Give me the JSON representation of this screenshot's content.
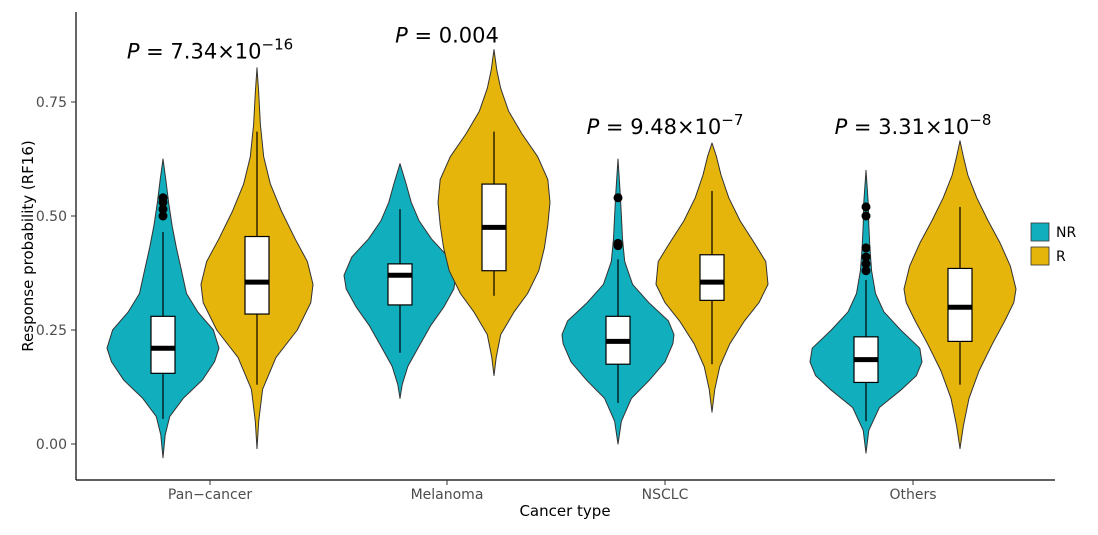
{
  "chart_data": {
    "type": "violin",
    "title": "",
    "xlabel": "Cancer type",
    "ylabel": "Response probability (RF16)",
    "ylim": [
      -0.06,
      0.96
    ],
    "yticks": [
      0.0,
      0.25,
      0.5,
      0.75
    ],
    "ytick_labels": [
      "0.00",
      "0.25",
      "0.50",
      "0.75"
    ],
    "grid": false,
    "legend": {
      "position": "right",
      "entries": [
        {
          "name": "NR",
          "color": "#11AFBD"
        },
        {
          "name": "R",
          "color": "#E5B50B"
        }
      ]
    },
    "categories": [
      "Pan−cancer",
      "Melanoma",
      "NSCLC",
      "Others"
    ],
    "annotations": [
      {
        "category": "Pan−cancer",
        "prefix": "P",
        "mid": " = 7.34×10",
        "sup": "−16",
        "y": 0.845
      },
      {
        "category": "Melanoma",
        "prefix": "P",
        "mid": " = 0.004",
        "sup": "",
        "y": 0.88
      },
      {
        "category": "NSCLC",
        "prefix": "P",
        "mid": " = 9.48×10",
        "sup": "−7",
        "y": 0.68
      },
      {
        "category": "Others",
        "prefix": "P",
        "mid": " = 3.31×10",
        "sup": "−8",
        "y": 0.68
      }
    ],
    "series": [
      {
        "name": "NR",
        "color": "#11AFBD",
        "groups": [
          {
            "category": "Pan−cancer",
            "min": 0.055,
            "q1": 0.155,
            "median": 0.21,
            "q3": 0.28,
            "max": 0.465,
            "outliers": [
              0.5,
              0.515,
              0.53,
              0.54
            ],
            "violin": {
              "ymin": -0.03,
              "ymax": 0.625,
              "points": [
                [
                  -0.03,
                  0.0
                ],
                [
                  0.02,
                  0.04
                ],
                [
                  0.06,
                  0.12
                ],
                [
                  0.1,
                  0.36
                ],
                [
                  0.14,
                  0.7
                ],
                [
                  0.18,
                  0.92
                ],
                [
                  0.21,
                  1.0
                ],
                [
                  0.25,
                  0.9
                ],
                [
                  0.29,
                  0.62
                ],
                [
                  0.33,
                  0.42
                ],
                [
                  0.38,
                  0.33
                ],
                [
                  0.43,
                  0.24
                ],
                [
                  0.48,
                  0.16
                ],
                [
                  0.53,
                  0.1
                ],
                [
                  0.58,
                  0.05
                ],
                [
                  0.625,
                  0.0
                ]
              ]
            }
          },
          {
            "category": "Melanoma",
            "min": 0.2,
            "q1": 0.305,
            "median": 0.37,
            "q3": 0.395,
            "max": 0.515,
            "outliers": [],
            "violin": {
              "ymin": 0.1,
              "ymax": 0.615,
              "points": [
                [
                  0.1,
                  0.0
                ],
                [
                  0.13,
                  0.04
                ],
                [
                  0.17,
                  0.14
                ],
                [
                  0.21,
                  0.32
                ],
                [
                  0.26,
                  0.55
                ],
                [
                  0.3,
                  0.78
                ],
                [
                  0.34,
                  0.96
                ],
                [
                  0.37,
                  1.0
                ],
                [
                  0.41,
                  0.86
                ],
                [
                  0.45,
                  0.56
                ],
                [
                  0.49,
                  0.34
                ],
                [
                  0.53,
                  0.2
                ],
                [
                  0.57,
                  0.11
                ],
                [
                  0.615,
                  0.0
                ]
              ]
            }
          },
          {
            "category": "NSCLC",
            "min": 0.09,
            "q1": 0.175,
            "median": 0.225,
            "q3": 0.28,
            "max": 0.405,
            "outliers": [
              0.435,
              0.44,
              0.54
            ],
            "violin": {
              "ymin": 0.0,
              "ymax": 0.625,
              "points": [
                [
                  0.0,
                  0.0
                ],
                [
                  0.05,
                  0.06
                ],
                [
                  0.1,
                  0.24
                ],
                [
                  0.14,
                  0.56
                ],
                [
                  0.18,
                  0.84
                ],
                [
                  0.22,
                  0.98
                ],
                [
                  0.24,
                  1.0
                ],
                [
                  0.27,
                  0.9
                ],
                [
                  0.31,
                  0.55
                ],
                [
                  0.35,
                  0.26
                ],
                [
                  0.4,
                  0.12
                ],
                [
                  0.45,
                  0.08
                ],
                [
                  0.5,
                  0.06
                ],
                [
                  0.55,
                  0.04
                ],
                [
                  0.625,
                  0.0
                ]
              ]
            }
          },
          {
            "category": "Others",
            "min": 0.05,
            "q1": 0.135,
            "median": 0.185,
            "q3": 0.235,
            "max": 0.36,
            "outliers": [
              0.38,
              0.395,
              0.41,
              0.43,
              0.5,
              0.52
            ],
            "violin": {
              "ymin": -0.02,
              "ymax": 0.6,
              "points": [
                [
                  -0.02,
                  0.0
                ],
                [
                  0.03,
                  0.05
                ],
                [
                  0.08,
                  0.24
                ],
                [
                  0.12,
                  0.64
                ],
                [
                  0.15,
                  0.9
                ],
                [
                  0.18,
                  1.0
                ],
                [
                  0.21,
                  0.96
                ],
                [
                  0.25,
                  0.62
                ],
                [
                  0.29,
                  0.32
                ],
                [
                  0.33,
                  0.17
                ],
                [
                  0.38,
                  0.1
                ],
                [
                  0.43,
                  0.07
                ],
                [
                  0.48,
                  0.05
                ],
                [
                  0.53,
                  0.04
                ],
                [
                  0.6,
                  0.0
                ]
              ]
            }
          }
        ]
      },
      {
        "name": "R",
        "color": "#E5B50B",
        "groups": [
          {
            "category": "Pan−cancer",
            "min": 0.13,
            "q1": 0.285,
            "median": 0.355,
            "q3": 0.455,
            "max": 0.685,
            "outliers": [],
            "violin": {
              "ymin": -0.01,
              "ymax": 0.825,
              "points": [
                [
                  -0.01,
                  0.0
                ],
                [
                  0.05,
                  0.03
                ],
                [
                  0.12,
                  0.1
                ],
                [
                  0.19,
                  0.34
                ],
                [
                  0.25,
                  0.72
                ],
                [
                  0.31,
                  0.96
                ],
                [
                  0.35,
                  1.0
                ],
                [
                  0.4,
                  0.9
                ],
                [
                  0.45,
                  0.68
                ],
                [
                  0.51,
                  0.44
                ],
                [
                  0.57,
                  0.24
                ],
                [
                  0.63,
                  0.12
                ],
                [
                  0.7,
                  0.06
                ],
                [
                  0.77,
                  0.03
                ],
                [
                  0.825,
                  0.0
                ]
              ]
            }
          },
          {
            "category": "Melanoma",
            "min": 0.325,
            "q1": 0.38,
            "median": 0.475,
            "q3": 0.57,
            "max": 0.685,
            "outliers": [],
            "violin": {
              "ymin": 0.15,
              "ymax": 0.865,
              "points": [
                [
                  0.15,
                  0.0
                ],
                [
                  0.19,
                  0.04
                ],
                [
                  0.24,
                  0.12
                ],
                [
                  0.29,
                  0.36
                ],
                [
                  0.33,
                  0.6
                ],
                [
                  0.38,
                  0.8
                ],
                [
                  0.43,
                  0.9
                ],
                [
                  0.48,
                  0.96
                ],
                [
                  0.53,
                  1.0
                ],
                [
                  0.58,
                  0.96
                ],
                [
                  0.63,
                  0.78
                ],
                [
                  0.68,
                  0.5
                ],
                [
                  0.73,
                  0.26
                ],
                [
                  0.78,
                  0.12
                ],
                [
                  0.82,
                  0.05
                ],
                [
                  0.865,
                  0.0
                ]
              ]
            }
          },
          {
            "category": "NSCLC",
            "min": 0.175,
            "q1": 0.315,
            "median": 0.355,
            "q3": 0.415,
            "max": 0.555,
            "outliers": [],
            "violin": {
              "ymin": 0.07,
              "ymax": 0.66,
              "points": [
                [
                  0.07,
                  0.0
                ],
                [
                  0.12,
                  0.05
                ],
                [
                  0.17,
                  0.14
                ],
                [
                  0.22,
                  0.32
                ],
                [
                  0.27,
                  0.58
                ],
                [
                  0.31,
                  0.84
                ],
                [
                  0.35,
                  1.0
                ],
                [
                  0.4,
                  0.96
                ],
                [
                  0.44,
                  0.76
                ],
                [
                  0.49,
                  0.5
                ],
                [
                  0.54,
                  0.3
                ],
                [
                  0.59,
                  0.16
                ],
                [
                  0.63,
                  0.08
                ],
                [
                  0.66,
                  0.0
                ]
              ]
            }
          },
          {
            "category": "Others",
            "min": 0.13,
            "q1": 0.225,
            "median": 0.3,
            "q3": 0.385,
            "max": 0.52,
            "outliers": [],
            "violin": {
              "ymin": -0.01,
              "ymax": 0.665,
              "points": [
                [
                  -0.01,
                  0.0
                ],
                [
                  0.04,
                  0.06
                ],
                [
                  0.1,
                  0.16
                ],
                [
                  0.16,
                  0.34
                ],
                [
                  0.22,
                  0.58
                ],
                [
                  0.27,
                  0.8
                ],
                [
                  0.31,
                  0.96
                ],
                [
                  0.34,
                  1.0
                ],
                [
                  0.39,
                  0.9
                ],
                [
                  0.44,
                  0.72
                ],
                [
                  0.49,
                  0.5
                ],
                [
                  0.54,
                  0.3
                ],
                [
                  0.59,
                  0.14
                ],
                [
                  0.63,
                  0.06
                ],
                [
                  0.665,
                  0.0
                ]
              ]
            }
          }
        ]
      }
    ]
  }
}
